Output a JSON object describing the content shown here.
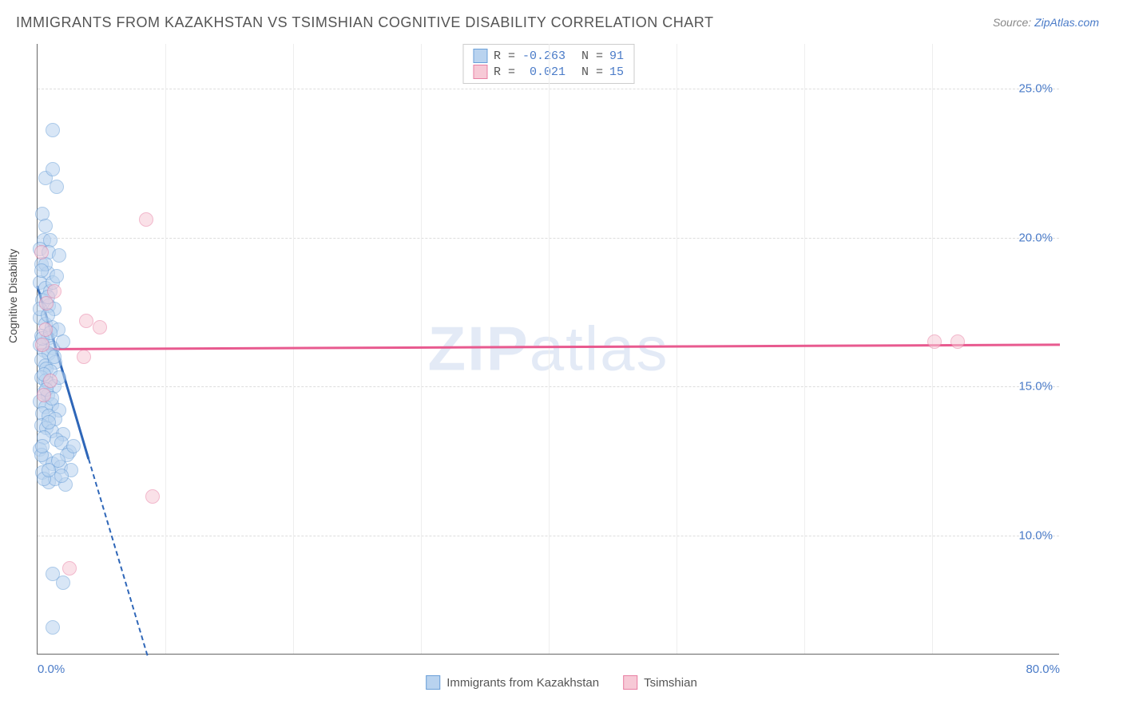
{
  "title": "IMMIGRANTS FROM KAZAKHSTAN VS TSIMSHIAN COGNITIVE DISABILITY CORRELATION CHART",
  "source": {
    "label": "Source: ",
    "site": "ZipAtlas.com"
  },
  "y_axis_label": "Cognitive Disability",
  "watermark": {
    "part1": "ZIP",
    "part2": "atlas"
  },
  "chart": {
    "type": "scatter",
    "xlim": [
      0,
      80
    ],
    "ylim": [
      6,
      26.5
    ],
    "x_ticks": [
      {
        "value": 0,
        "label": "0.0%",
        "align": "left"
      },
      {
        "value": 80,
        "label": "80.0%",
        "align": "right"
      }
    ],
    "x_minor_ticks": [
      10,
      20,
      30,
      40,
      50,
      60,
      70
    ],
    "y_ticks": [
      {
        "value": 10,
        "label": "10.0%"
      },
      {
        "value": 15,
        "label": "15.0%"
      },
      {
        "value": 20,
        "label": "20.0%"
      },
      {
        "value": 25,
        "label": "25.0%"
      }
    ],
    "background_color": "#ffffff",
    "grid_color": "#dddddd",
    "axis_color": "#666666",
    "label_color": "#4a7bc8",
    "marker_radius": 9,
    "marker_stroke_width": 1.5,
    "series": [
      {
        "name": "Immigrants from Kazakhstan",
        "fill": "#b9d3ef",
        "stroke": "#6a9fd8",
        "fill_opacity": 0.55,
        "r_value": "-0.263",
        "n_value": "91",
        "trend": {
          "color": "#2e66b8",
          "solid": {
            "x1": 0,
            "y1": 18.4,
            "x2": 4.0,
            "y2": 12.6
          },
          "dashed": {
            "x1": 4.0,
            "y1": 12.6,
            "x2": 8.6,
            "y2": 6.0
          }
        },
        "points": [
          [
            1.2,
            23.6
          ],
          [
            0.6,
            22.0
          ],
          [
            1.2,
            22.3
          ],
          [
            1.5,
            21.7
          ],
          [
            0.4,
            20.8
          ],
          [
            0.5,
            19.9
          ],
          [
            1.0,
            19.9
          ],
          [
            0.2,
            19.6
          ],
          [
            0.9,
            19.5
          ],
          [
            1.7,
            19.4
          ],
          [
            0.3,
            19.1
          ],
          [
            0.8,
            18.8
          ],
          [
            0.2,
            18.5
          ],
          [
            0.6,
            18.3
          ],
          [
            1.0,
            18.2
          ],
          [
            0.4,
            17.9
          ],
          [
            0.9,
            17.7
          ],
          [
            1.3,
            17.6
          ],
          [
            0.2,
            17.3
          ],
          [
            0.6,
            17.1
          ],
          [
            1.1,
            17.0
          ],
          [
            1.6,
            16.9
          ],
          [
            0.3,
            16.7
          ],
          [
            0.8,
            16.6
          ],
          [
            0.2,
            16.4
          ],
          [
            0.5,
            16.2
          ],
          [
            1.2,
            16.3
          ],
          [
            0.9,
            16.1
          ],
          [
            0.3,
            15.9
          ],
          [
            0.6,
            15.7
          ],
          [
            1.4,
            15.8
          ],
          [
            0.7,
            15.6
          ],
          [
            1.0,
            15.5
          ],
          [
            0.3,
            15.3
          ],
          [
            0.6,
            15.2
          ],
          [
            0.9,
            15.1
          ],
          [
            1.3,
            15.0
          ],
          [
            0.5,
            14.8
          ],
          [
            0.8,
            14.7
          ],
          [
            0.2,
            14.5
          ],
          [
            1.1,
            14.4
          ],
          [
            0.6,
            14.3
          ],
          [
            1.7,
            14.2
          ],
          [
            0.4,
            14.1
          ],
          [
            0.9,
            14.0
          ],
          [
            1.4,
            13.9
          ],
          [
            0.3,
            13.7
          ],
          [
            0.7,
            13.6
          ],
          [
            1.1,
            13.5
          ],
          [
            2.0,
            13.4
          ],
          [
            0.5,
            13.3
          ],
          [
            1.5,
            13.2
          ],
          [
            1.9,
            13.1
          ],
          [
            0.2,
            12.9
          ],
          [
            2.5,
            12.8
          ],
          [
            0.6,
            12.6
          ],
          [
            1.2,
            12.4
          ],
          [
            1.8,
            12.3
          ],
          [
            0.4,
            12.1
          ],
          [
            2.3,
            12.7
          ],
          [
            0.9,
            11.8
          ],
          [
            1.4,
            11.9
          ],
          [
            2.6,
            12.2
          ],
          [
            2.2,
            11.7
          ],
          [
            0.6,
            19.1
          ],
          [
            1.2,
            18.5
          ],
          [
            2.0,
            16.5
          ],
          [
            0.3,
            12.7
          ],
          [
            1.9,
            12.0
          ],
          [
            2.8,
            13.0
          ],
          [
            1.2,
            8.7
          ],
          [
            2.0,
            8.4
          ],
          [
            1.2,
            6.9
          ],
          [
            0.4,
            16.6
          ],
          [
            0.2,
            17.6
          ],
          [
            0.8,
            18.0
          ],
          [
            0.5,
            15.4
          ],
          [
            0.9,
            13.8
          ],
          [
            0.4,
            13.0
          ],
          [
            1.6,
            12.5
          ],
          [
            0.7,
            14.9
          ],
          [
            1.0,
            16.8
          ],
          [
            0.3,
            18.9
          ],
          [
            1.5,
            18.7
          ],
          [
            0.6,
            20.4
          ],
          [
            0.8,
            17.4
          ],
          [
            1.1,
            14.6
          ],
          [
            0.5,
            11.9
          ],
          [
            1.3,
            16.0
          ],
          [
            1.7,
            15.3
          ],
          [
            0.9,
            12.2
          ]
        ]
      },
      {
        "name": "Tsimshian",
        "fill": "#f7c9d6",
        "stroke": "#e87fa3",
        "fill_opacity": 0.55,
        "r_value": "0.021",
        "n_value": "15",
        "trend": {
          "color": "#e85a8f",
          "solid": {
            "x1": 0,
            "y1": 16.3,
            "x2": 80,
            "y2": 16.45
          }
        },
        "points": [
          [
            8.5,
            20.6
          ],
          [
            1.3,
            18.2
          ],
          [
            3.8,
            17.2
          ],
          [
            4.9,
            17.0
          ],
          [
            3.6,
            16.0
          ],
          [
            0.4,
            16.4
          ],
          [
            0.5,
            14.7
          ],
          [
            9.0,
            11.3
          ],
          [
            2.5,
            8.9
          ],
          [
            70.2,
            16.5
          ],
          [
            72.0,
            16.5
          ],
          [
            0.3,
            19.5
          ],
          [
            0.7,
            17.8
          ],
          [
            1.0,
            15.2
          ],
          [
            0.6,
            16.9
          ]
        ]
      }
    ]
  },
  "legend": {
    "r_label": "R =",
    "n_label": "N ="
  }
}
